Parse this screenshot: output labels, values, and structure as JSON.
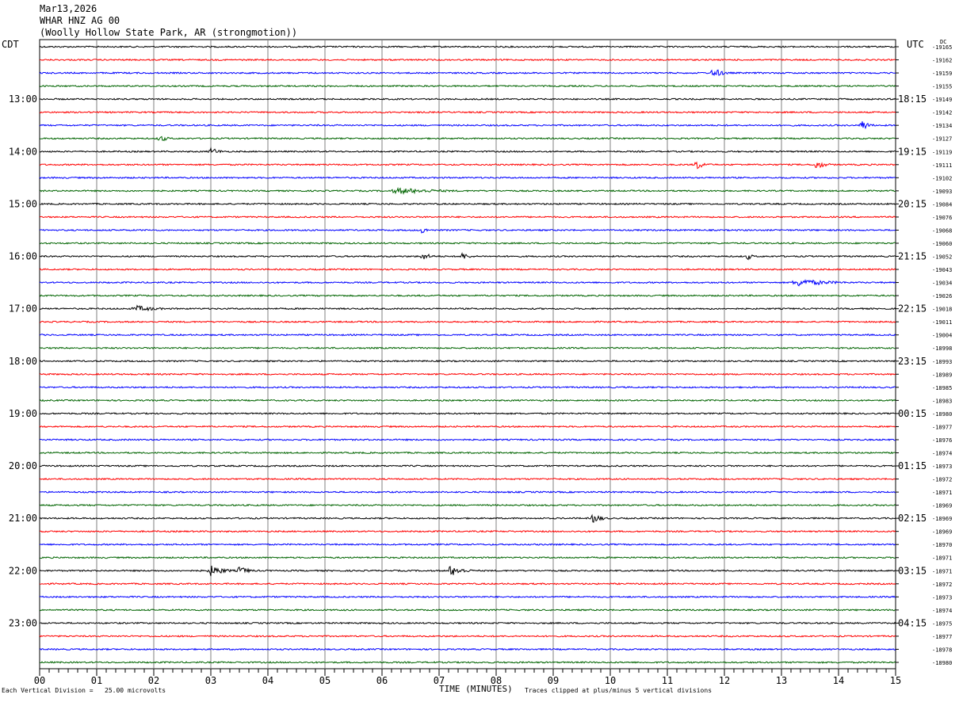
{
  "header": {
    "date": "Mar13,2026",
    "station": "WHAR HNZ AG 00",
    "location": "(Woolly Hollow State Park, AR (strongmotion))"
  },
  "left_zone": "CDT",
  "right_zone": "UTC",
  "dc_label": "DC",
  "footer": {
    "left": "Each Vertical Division =   25.00 microvolts",
    "xlabel": "TIME (MINUTES)",
    "right": "Traces clipped at plus/minus 5 vertical divisions"
  },
  "colors": {
    "black": "#000000",
    "red": "#ff0000",
    "blue": "#0000ff",
    "green": "#006400",
    "grid": "#808080"
  },
  "chart_data": {
    "type": "line",
    "xlabel": "TIME (MINUTES)",
    "xlim": [
      0,
      15
    ],
    "x_ticks": [
      "00",
      "01",
      "02",
      "03",
      "04",
      "05",
      "06",
      "07",
      "08",
      "09",
      "10",
      "11",
      "12",
      "13",
      "14",
      "15"
    ],
    "left_hour_labels": [
      "13:00",
      "14:00",
      "15:00",
      "16:00",
      "17:00",
      "18:00",
      "19:00",
      "20:00",
      "21:00",
      "22:00",
      "23:00"
    ],
    "right_hour_labels": [
      "18:15",
      "19:15",
      "20:15",
      "21:15",
      "22:15",
      "23:15",
      "00:15",
      "01:15",
      "02:15",
      "03:15",
      "04:15"
    ],
    "first_hour_label_row": 4,
    "trace_colors": [
      "black",
      "red",
      "blue",
      "green"
    ],
    "dc_values": [
      "-19165",
      "-19162",
      "-19159",
      "-19155",
      "-19149",
      "-19142",
      "-19134",
      "-19127",
      "-19119",
      "-19111",
      "-19102",
      "-19093",
      "-19084",
      "-19076",
      "-19068",
      "-19060",
      "-19052",
      "-19043",
      "-19034",
      "-19026",
      "-19018",
      "-19011",
      "-19004",
      "-18998",
      "-18993",
      "-18989",
      "-18985",
      "-18983",
      "-18980",
      "-18977",
      "-18976",
      "-18974",
      "-18973",
      "-18972",
      "-18971",
      "-18969",
      "-18969",
      "-18969",
      "-18970",
      "-18971",
      "-18971",
      "-18972",
      "-18973",
      "-18974",
      "-18975",
      "-18977",
      "-18978",
      "-18980"
    ],
    "events": [
      {
        "row": 2,
        "minute": 11.8,
        "duration": 0.35,
        "amp": 7
      },
      {
        "row": 6,
        "minute": 14.4,
        "duration": 0.25,
        "amp": 8
      },
      {
        "row": 7,
        "minute": 2.1,
        "duration": 0.3,
        "amp": 5
      },
      {
        "row": 8,
        "minute": 3.0,
        "duration": 0.35,
        "amp": 5
      },
      {
        "row": 9,
        "minute": 11.5,
        "duration": 0.3,
        "amp": 7
      },
      {
        "row": 9,
        "minute": 13.6,
        "duration": 0.35,
        "amp": 6
      },
      {
        "row": 11,
        "minute": 6.3,
        "duration": 1.6,
        "amp": 4
      },
      {
        "row": 14,
        "minute": 6.7,
        "duration": 0.2,
        "amp": 5
      },
      {
        "row": 16,
        "minute": 6.7,
        "duration": 0.35,
        "amp": 5
      },
      {
        "row": 16,
        "minute": 7.4,
        "duration": 0.3,
        "amp": 5
      },
      {
        "row": 16,
        "minute": 12.4,
        "duration": 0.2,
        "amp": 5
      },
      {
        "row": 18,
        "minute": 13.3,
        "duration": 1.2,
        "amp": 5
      },
      {
        "row": 20,
        "minute": 1.7,
        "duration": 0.8,
        "amp": 4
      },
      {
        "row": 36,
        "minute": 9.7,
        "duration": 0.3,
        "amp": 7
      },
      {
        "row": 40,
        "minute": 3.0,
        "duration": 0.5,
        "amp": 7
      },
      {
        "row": 40,
        "minute": 3.5,
        "duration": 0.35,
        "amp": 6
      },
      {
        "row": 40,
        "minute": 7.2,
        "duration": 0.5,
        "amp": 7
      }
    ]
  }
}
